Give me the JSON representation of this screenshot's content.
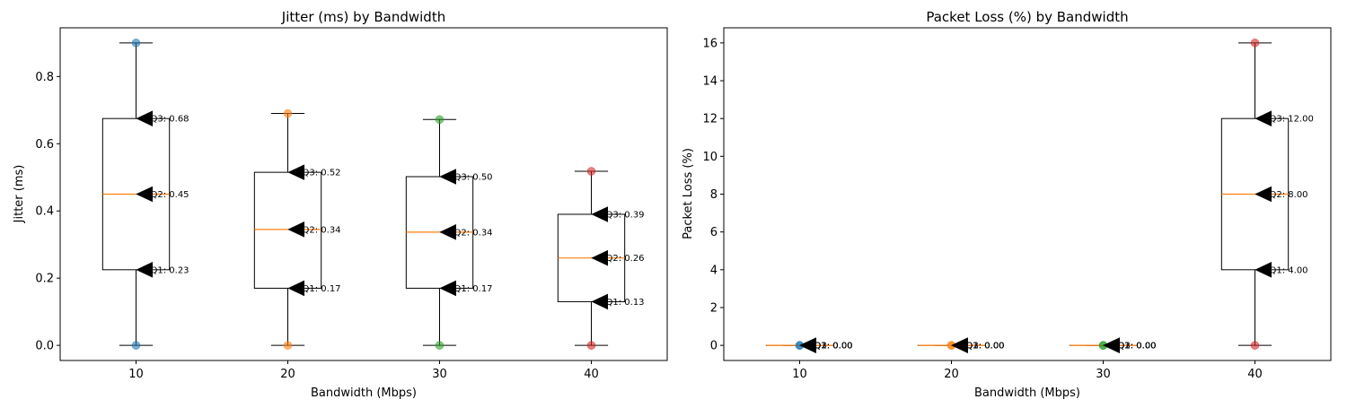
{
  "chart_data": [
    {
      "type": "box",
      "title": "Jitter (ms) by Bandwidth",
      "xlabel": "Bandwidth (Mbps)",
      "ylabel": "Jitter (ms)",
      "categories": [
        "10",
        "20",
        "30",
        "40"
      ],
      "ylim": [
        -0.045,
        0.945
      ],
      "yticks": [
        0.0,
        0.2,
        0.4,
        0.6,
        0.8
      ],
      "ytick_labels": [
        "0.0",
        "0.2",
        "0.4",
        "0.6",
        "0.8"
      ],
      "boxes": [
        {
          "category": "10",
          "min": 0.0,
          "q1": 0.225,
          "median": 0.45,
          "q3": 0.675,
          "max": 0.9
        },
        {
          "category": "20",
          "min": 0.0,
          "q1": 0.17,
          "median": 0.345,
          "q3": 0.515,
          "max": 0.69
        },
        {
          "category": "30",
          "min": 0.0,
          "q1": 0.17,
          "median": 0.337,
          "q3": 0.502,
          "max": 0.672
        },
        {
          "category": "40",
          "min": 0.0,
          "q1": 0.13,
          "median": 0.26,
          "q3": 0.39,
          "max": 0.518
        }
      ],
      "points": [
        {
          "category": "10",
          "values": [
            0.0,
            0.9
          ]
        },
        {
          "category": "20",
          "values": [
            0.0,
            0.69
          ]
        },
        {
          "category": "30",
          "values": [
            0.0,
            0.672
          ]
        },
        {
          "category": "40",
          "values": [
            0.0,
            0.518
          ]
        }
      ],
      "annotations": [
        {
          "category": "10",
          "y": 0.675,
          "text": "Q3: 0.68"
        },
        {
          "category": "10",
          "y": 0.45,
          "text": "Q2: 0.45"
        },
        {
          "category": "10",
          "y": 0.225,
          "text": "Q1: 0.23"
        },
        {
          "category": "20",
          "y": 0.515,
          "text": "Q3: 0.52"
        },
        {
          "category": "20",
          "y": 0.345,
          "text": "Q2: 0.34"
        },
        {
          "category": "20",
          "y": 0.17,
          "text": "Q1: 0.17"
        },
        {
          "category": "30",
          "y": 0.502,
          "text": "Q3: 0.50"
        },
        {
          "category": "30",
          "y": 0.337,
          "text": "Q2: 0.34"
        },
        {
          "category": "30",
          "y": 0.17,
          "text": "Q1: 0.17"
        },
        {
          "category": "40",
          "y": 0.39,
          "text": "Q3: 0.39"
        },
        {
          "category": "40",
          "y": 0.26,
          "text": "Q2: 0.26"
        },
        {
          "category": "40",
          "y": 0.13,
          "text": "Q1: 0.13"
        }
      ],
      "point_colors": [
        "#1f77b4",
        "#ff7f0e",
        "#2ca02c",
        "#d62728"
      ],
      "median_color": "#ff7f0e",
      "grid": false
    },
    {
      "type": "box",
      "title": "Packet Loss (%) by Bandwidth",
      "xlabel": "Bandwidth (Mbps)",
      "ylabel": "Packet Loss (%)",
      "categories": [
        "10",
        "20",
        "30",
        "40"
      ],
      "ylim": [
        -0.8,
        16.8
      ],
      "yticks": [
        0,
        2,
        4,
        6,
        8,
        10,
        12,
        14,
        16
      ],
      "ytick_labels": [
        "0",
        "2",
        "4",
        "6",
        "8",
        "10",
        "12",
        "14",
        "16"
      ],
      "boxes": [
        {
          "category": "10",
          "min": 0,
          "q1": 0,
          "median": 0,
          "q3": 0,
          "max": 0
        },
        {
          "category": "20",
          "min": 0,
          "q1": 0,
          "median": 0,
          "q3": 0,
          "max": 0
        },
        {
          "category": "30",
          "min": 0,
          "q1": 0,
          "median": 0,
          "q3": 0,
          "max": 0
        },
        {
          "category": "40",
          "min": 0,
          "q1": 4,
          "median": 8,
          "q3": 12,
          "max": 16
        }
      ],
      "points": [
        {
          "category": "10",
          "values": [
            0,
            0
          ]
        },
        {
          "category": "20",
          "values": [
            0,
            0
          ]
        },
        {
          "category": "30",
          "values": [
            0,
            0
          ]
        },
        {
          "category": "40",
          "values": [
            0,
            16
          ]
        }
      ],
      "annotations": [
        {
          "category": "10",
          "y": 0,
          "text": "Q3: 0.00"
        },
        {
          "category": "10",
          "y": 0,
          "text": "Q2: 0.00"
        },
        {
          "category": "10",
          "y": 0,
          "text": "Q1: 0.00"
        },
        {
          "category": "20",
          "y": 0,
          "text": "Q3: 0.00"
        },
        {
          "category": "20",
          "y": 0,
          "text": "Q2: 0.00"
        },
        {
          "category": "20",
          "y": 0,
          "text": "Q1: 0.00"
        },
        {
          "category": "30",
          "y": 0,
          "text": "Q3: 0.00"
        },
        {
          "category": "30",
          "y": 0,
          "text": "Q2: 0.00"
        },
        {
          "category": "30",
          "y": 0,
          "text": "Q1: 0.00"
        },
        {
          "category": "40",
          "y": 12,
          "text": "Q3: 12.00"
        },
        {
          "category": "40",
          "y": 8,
          "text": "Q2: 8.00"
        },
        {
          "category": "40",
          "y": 4,
          "text": "Q1: 4.00"
        }
      ],
      "point_colors": [
        "#1f77b4",
        "#ff7f0e",
        "#2ca02c",
        "#d62728"
      ],
      "median_color": "#ff7f0e",
      "grid": false
    }
  ]
}
